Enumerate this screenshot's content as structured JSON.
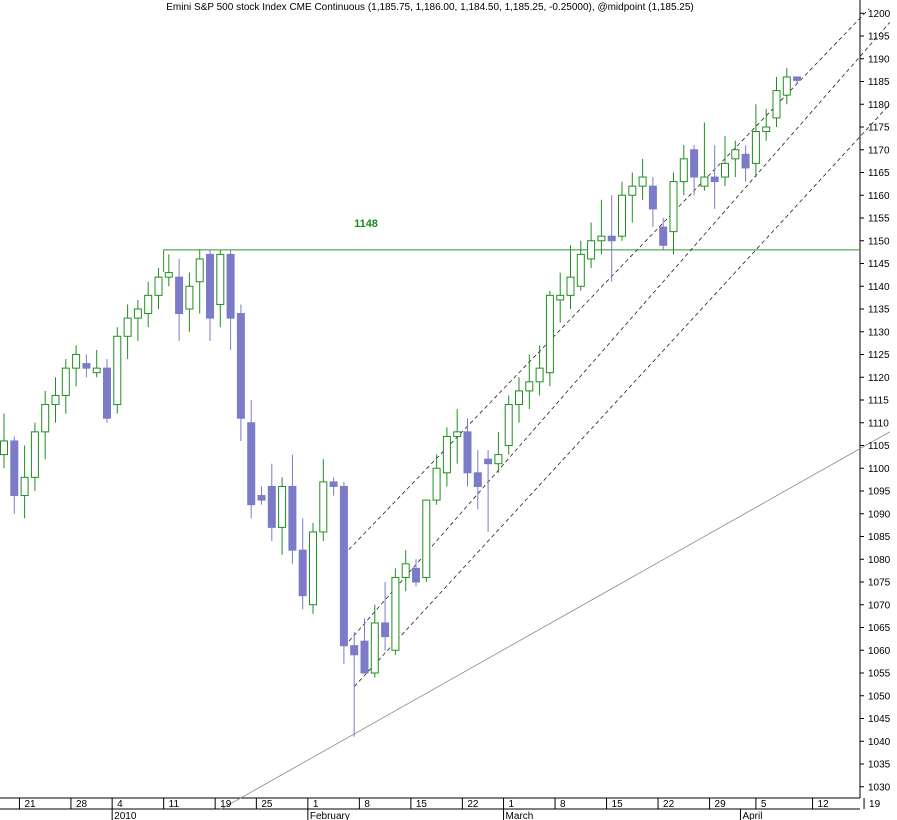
{
  "chart_data": {
    "type": "candlestick",
    "title": "Emini S&P 500 stock Index CME Continuous (1,185.75, 1,186.00, 1,184.50, 1,185.25, -0.25000), @midpoint (1,185.25)",
    "ylim": [
      1025,
      1202
    ],
    "y_ticks": [
      1030,
      1035,
      1040,
      1045,
      1050,
      1055,
      1060,
      1065,
      1070,
      1075,
      1080,
      1085,
      1090,
      1095,
      1100,
      1105,
      1110,
      1115,
      1120,
      1125,
      1130,
      1135,
      1140,
      1145,
      1150,
      1155,
      1160,
      1165,
      1170,
      1175,
      1180,
      1185,
      1190,
      1195,
      1200
    ],
    "x_day_ticks": [
      {
        "label": "21",
        "bar": 1.5
      },
      {
        "label": "28",
        "bar": 6.5
      },
      {
        "label": "4",
        "bar": 10.5
      },
      {
        "label": "11",
        "bar": 15.5
      },
      {
        "label": "19",
        "bar": 20.5
      },
      {
        "label": "25",
        "bar": 24.5
      },
      {
        "label": "1",
        "bar": 29.5
      },
      {
        "label": "8",
        "bar": 34.5
      },
      {
        "label": "15",
        "bar": 39.5
      },
      {
        "label": "22",
        "bar": 44.5
      },
      {
        "label": "1",
        "bar": 48.5
      },
      {
        "label": "8",
        "bar": 53.5
      },
      {
        "label": "15",
        "bar": 58.5
      },
      {
        "label": "22",
        "bar": 63.5
      },
      {
        "label": "29",
        "bar": 68.5
      },
      {
        "label": "5",
        "bar": 73
      },
      {
        "label": "12",
        "bar": 78.5
      },
      {
        "label": "19",
        "bar": 83.5
      }
    ],
    "x_month_ticks": [
      {
        "label": "2010",
        "bar": 10.5
      },
      {
        "label": "February",
        "bar": 29.5
      },
      {
        "label": "March",
        "bar": 48.5
      },
      {
        "label": "April",
        "bar": 71.5
      }
    ],
    "level_line": {
      "value": 1148,
      "label": "1148",
      "start_bar": 15.5
    },
    "channel_lines": [
      {
        "style": "dashed",
        "p1": {
          "bar": 33,
          "price": 1081
        },
        "p2": {
          "bar": 84,
          "price": 1201
        }
      },
      {
        "style": "dashed",
        "p1": {
          "bar": 33.5,
          "price": 1062
        },
        "p2": {
          "bar": 86,
          "price": 1198
        }
      },
      {
        "style": "dashed",
        "p1": {
          "bar": 34,
          "price": 1052
        },
        "p2": {
          "bar": 86,
          "price": 1180
        }
      }
    ],
    "trend_line": {
      "style": "solid",
      "p1": {
        "bar": 21,
        "price": 1025
      },
      "p2": {
        "bar": 86,
        "price": 1108
      }
    },
    "candles": [
      {
        "o": 1103,
        "h": 1112,
        "l": 1100,
        "c": 1106
      },
      {
        "o": 1106,
        "h": 1107,
        "l": 1090,
        "c": 1094
      },
      {
        "o": 1094,
        "h": 1105,
        "l": 1089,
        "c": 1098
      },
      {
        "o": 1098,
        "h": 1110,
        "l": 1095,
        "c": 1108
      },
      {
        "o": 1108,
        "h": 1117,
        "l": 1102,
        "c": 1114
      },
      {
        "o": 1114,
        "h": 1120,
        "l": 1110,
        "c": 1116
      },
      {
        "o": 1116,
        "h": 1124,
        "l": 1112,
        "c": 1122
      },
      {
        "o": 1122,
        "h": 1127,
        "l": 1118,
        "c": 1125
      },
      {
        "o": 1123,
        "h": 1125,
        "l": 1120,
        "c": 1122
      },
      {
        "o": 1121,
        "h": 1126,
        "l": 1120,
        "c": 1122
      },
      {
        "o": 1122,
        "h": 1124,
        "l": 1110,
        "c": 1111
      },
      {
        "o": 1114,
        "h": 1131,
        "l": 1112,
        "c": 1129
      },
      {
        "o": 1129,
        "h": 1136,
        "l": 1124,
        "c": 1133
      },
      {
        "o": 1133,
        "h": 1137,
        "l": 1128,
        "c": 1135
      },
      {
        "o": 1134,
        "h": 1141,
        "l": 1131,
        "c": 1138
      },
      {
        "o": 1138,
        "h": 1144,
        "l": 1135,
        "c": 1142
      },
      {
        "o": 1142,
        "h": 1147,
        "l": 1140,
        "c": 1143
      },
      {
        "o": 1142,
        "h": 1146,
        "l": 1128,
        "c": 1134
      },
      {
        "o": 1135,
        "h": 1143,
        "l": 1130,
        "c": 1140
      },
      {
        "o": 1141,
        "h": 1148,
        "l": 1134,
        "c": 1146
      },
      {
        "o": 1147,
        "h": 1148,
        "l": 1128,
        "c": 1133
      },
      {
        "o": 1136,
        "h": 1148,
        "l": 1131,
        "c": 1147
      },
      {
        "o": 1147,
        "h": 1148,
        "l": 1126,
        "c": 1133
      },
      {
        "o": 1134,
        "h": 1136,
        "l": 1106,
        "c": 1111
      },
      {
        "o": 1110,
        "h": 1115,
        "l": 1089,
        "c": 1092
      },
      {
        "o": 1094,
        "h": 1096,
        "l": 1092,
        "c": 1093
      },
      {
        "o": 1096,
        "h": 1101,
        "l": 1084,
        "c": 1087
      },
      {
        "o": 1087,
        "h": 1098,
        "l": 1081,
        "c": 1096
      },
      {
        "o": 1096,
        "h": 1103,
        "l": 1079,
        "c": 1082
      },
      {
        "o": 1082,
        "h": 1089,
        "l": 1069,
        "c": 1072
      },
      {
        "o": 1070,
        "h": 1088,
        "l": 1068,
        "c": 1086
      },
      {
        "o": 1086,
        "h": 1102,
        "l": 1084,
        "c": 1097
      },
      {
        "o": 1097,
        "h": 1098,
        "l": 1094,
        "c": 1096
      },
      {
        "o": 1096,
        "h": 1097,
        "l": 1057,
        "c": 1061
      },
      {
        "o": 1061,
        "h": 1064,
        "l": 1041,
        "c": 1059
      },
      {
        "o": 1062,
        "h": 1067,
        "l": 1055,
        "c": 1055
      },
      {
        "o": 1055,
        "h": 1070,
        "l": 1054,
        "c": 1066
      },
      {
        "o": 1066,
        "h": 1075,
        "l": 1060,
        "c": 1063
      },
      {
        "o": 1060,
        "h": 1078,
        "l": 1059,
        "c": 1076
      },
      {
        "o": 1076,
        "h": 1082,
        "l": 1073,
        "c": 1079
      },
      {
        "o": 1078,
        "h": 1080,
        "l": 1074,
        "c": 1075
      },
      {
        "o": 1076,
        "h": 1093,
        "l": 1075,
        "c": 1093
      },
      {
        "o": 1093,
        "h": 1103,
        "l": 1092,
        "c": 1100
      },
      {
        "o": 1099,
        "h": 1109,
        "l": 1096,
        "c": 1107
      },
      {
        "o": 1107,
        "h": 1113,
        "l": 1101,
        "c": 1108
      },
      {
        "o": 1108,
        "h": 1111,
        "l": 1096,
        "c": 1099
      },
      {
        "o": 1099,
        "h": 1104,
        "l": 1091,
        "c": 1096
      },
      {
        "o": 1102,
        "h": 1104,
        "l": 1086,
        "c": 1101
      },
      {
        "o": 1101,
        "h": 1108,
        "l": 1099,
        "c": 1103
      },
      {
        "o": 1105,
        "h": 1116,
        "l": 1103,
        "c": 1114
      },
      {
        "o": 1114,
        "h": 1120,
        "l": 1110,
        "c": 1117
      },
      {
        "o": 1117,
        "h": 1125,
        "l": 1113,
        "c": 1119
      },
      {
        "o": 1119,
        "h": 1127,
        "l": 1116,
        "c": 1122
      },
      {
        "o": 1121,
        "h": 1139,
        "l": 1118,
        "c": 1138
      },
      {
        "o": 1137,
        "h": 1143,
        "l": 1132,
        "c": 1138
      },
      {
        "o": 1138,
        "h": 1149,
        "l": 1135,
        "c": 1142
      },
      {
        "o": 1140,
        "h": 1150,
        "l": 1139,
        "c": 1147
      },
      {
        "o": 1146,
        "h": 1154,
        "l": 1144,
        "c": 1150
      },
      {
        "o": 1150,
        "h": 1159,
        "l": 1147,
        "c": 1151
      },
      {
        "o": 1151,
        "h": 1160,
        "l": 1141,
        "c": 1150
      },
      {
        "o": 1151,
        "h": 1163,
        "l": 1150,
        "c": 1160
      },
      {
        "o": 1160,
        "h": 1165,
        "l": 1154,
        "c": 1162
      },
      {
        "o": 1162,
        "h": 1168,
        "l": 1159,
        "c": 1164
      },
      {
        "o": 1162,
        "h": 1164,
        "l": 1153,
        "c": 1157
      },
      {
        "o": 1153,
        "h": 1155,
        "l": 1148,
        "c": 1149
      },
      {
        "o": 1152,
        "h": 1165,
        "l": 1147,
        "c": 1163
      },
      {
        "o": 1163,
        "h": 1171,
        "l": 1160,
        "c": 1168
      },
      {
        "o": 1170,
        "h": 1171,
        "l": 1160,
        "c": 1164
      },
      {
        "o": 1162,
        "h": 1176,
        "l": 1161,
        "c": 1164
      },
      {
        "o": 1164,
        "h": 1171,
        "l": 1157,
        "c": 1163
      },
      {
        "o": 1164,
        "h": 1173,
        "l": 1162,
        "c": 1167
      },
      {
        "o": 1168,
        "h": 1172,
        "l": 1164,
        "c": 1170
      },
      {
        "o": 1169,
        "h": 1171,
        "l": 1163,
        "c": 1166
      },
      {
        "o": 1167,
        "h": 1180,
        "l": 1164,
        "c": 1174
      },
      {
        "o": 1174,
        "h": 1179,
        "l": 1172,
        "c": 1175
      },
      {
        "o": 1177,
        "h": 1186,
        "l": 1175,
        "c": 1183
      },
      {
        "o": 1182,
        "h": 1188,
        "l": 1180,
        "c": 1186
      },
      {
        "o": 1186,
        "h": 1186,
        "l": 1184.5,
        "c": 1185.25
      }
    ],
    "colors": {
      "up_candle": "#1f8f1f",
      "down_candle": "#7b7bc8",
      "level_line": "#2a9a2a",
      "channel": "#222222",
      "trend_line": "#888888",
      "special_bar": "#118811"
    }
  }
}
